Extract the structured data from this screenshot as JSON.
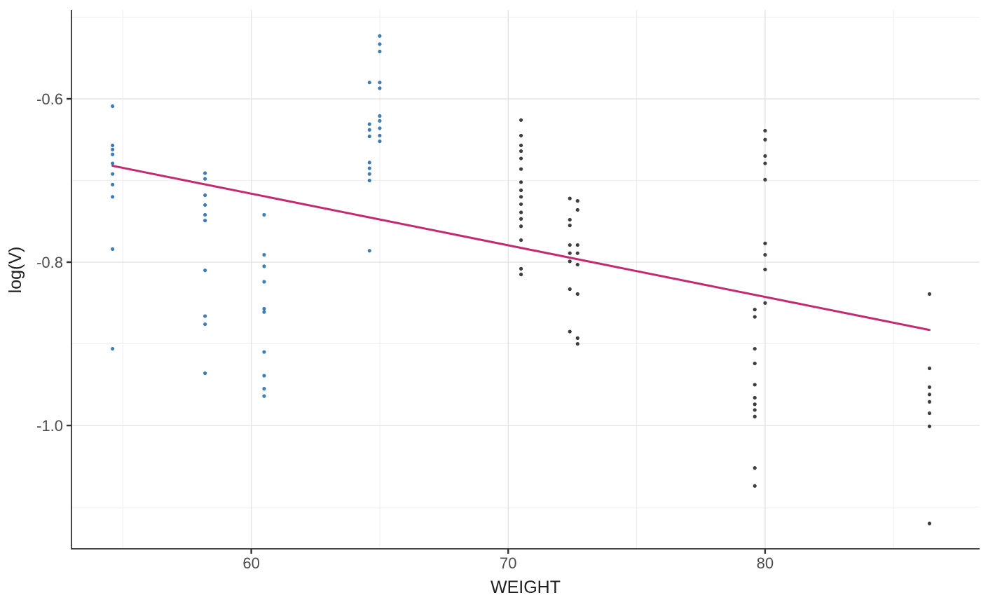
{
  "chart_data": {
    "type": "scatter",
    "title": "",
    "xlabel": "WEIGHT",
    "ylabel": "log(V)",
    "xlim": [
      53.0,
      88.35
    ],
    "ylim": [
      -1.151,
      -0.491
    ],
    "x_major_ticks": [
      60,
      70,
      80
    ],
    "x_minor_ticks": [
      55,
      65,
      75,
      85
    ],
    "y_major_ticks": [
      -0.6,
      -0.8,
      -1.0
    ],
    "y_minor_ticks": [
      -0.5,
      -0.7,
      -0.9,
      -1.1
    ],
    "grid": "major-and-minor",
    "legend_position": "none",
    "colors": {
      "major_grid": "#e3e3e3",
      "minor_grid": "#f0f0f0",
      "axis_line": "#474747",
      "tick_mark": "#333333",
      "tick_text": "#4d4d4d",
      "background": "#ffffff"
    },
    "series": [
      {
        "name": "lighter-subjects-blue",
        "color": "#3E7DB4",
        "groups": [
          {
            "weight": 54.6,
            "logV": [
              -0.609,
              -0.657,
              -0.662,
              -0.668,
              -0.679,
              -0.692,
              -0.705,
              -0.72,
              -0.784,
              -0.906
            ]
          },
          {
            "weight": 58.2,
            "logV": [
              -0.691,
              -0.698,
              -0.718,
              -0.73,
              -0.742,
              -0.749,
              -0.81,
              -0.866,
              -0.876,
              -0.936
            ]
          },
          {
            "weight": 60.5,
            "logV": [
              -0.742,
              -0.791,
              -0.805,
              -0.824,
              -0.857,
              -0.861,
              -0.91,
              -0.939,
              -0.955,
              -0.964
            ]
          },
          {
            "weight": 64.6,
            "logV": [
              -0.58,
              -0.631,
              -0.638,
              -0.646,
              -0.678,
              -0.685,
              -0.692,
              -0.7,
              -0.786
            ]
          },
          {
            "weight": 65.0,
            "logV": [
              -0.523,
              -0.533,
              -0.542,
              -0.58,
              -0.587,
              -0.621,
              -0.627,
              -0.636,
              -0.645,
              -0.652
            ]
          }
        ]
      },
      {
        "name": "heavier-subjects-gray",
        "color": "#3E3E3E",
        "groups": [
          {
            "weight": 70.5,
            "logV": [
              -0.626,
              -0.645,
              -0.657,
              -0.664,
              -0.673,
              -0.686,
              -0.702,
              -0.712,
              -0.72,
              -0.729,
              -0.739,
              -0.747,
              -0.756,
              -0.773,
              -0.808,
              -0.815
            ]
          },
          {
            "weight": 72.4,
            "logV": [
              -0.722,
              -0.748,
              -0.755,
              -0.779,
              -0.789,
              -0.799,
              -0.833,
              -0.885
            ]
          },
          {
            "weight": 72.7,
            "logV": [
              -0.725,
              -0.736,
              -0.779,
              -0.789,
              -0.803,
              -0.839,
              -0.893,
              -0.9
            ]
          },
          {
            "weight": 79.6,
            "logV": [
              -0.858,
              -0.867,
              -0.906,
              -0.924,
              -0.95,
              -0.966,
              -0.974,
              -0.981,
              -0.989,
              -1.052,
              -1.074
            ]
          },
          {
            "weight": 80.0,
            "logV": [
              -0.639,
              -0.65,
              -0.67,
              -0.679,
              -0.699,
              -0.777,
              -0.791,
              -0.809,
              -0.85
            ]
          },
          {
            "weight": 86.4,
            "logV": [
              -0.839,
              -0.93,
              -0.953,
              -0.962,
              -0.971,
              -0.985,
              -1.001,
              -1.12
            ]
          }
        ]
      }
    ],
    "regression_line": {
      "name": "linear-fit",
      "color": "#C42A70",
      "width": 3,
      "x1": 54.6,
      "y1": -0.682,
      "x2": 86.4,
      "y2": -0.883
    }
  }
}
